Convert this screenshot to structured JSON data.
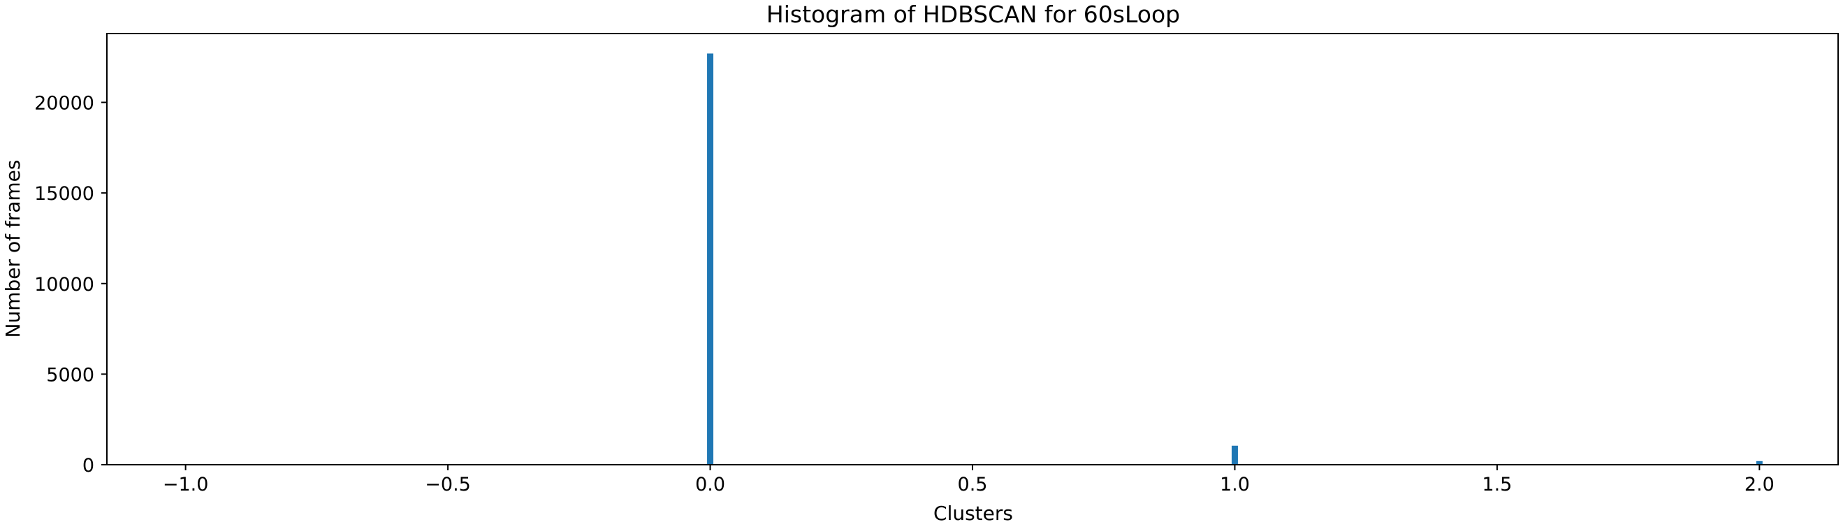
{
  "chart_data": {
    "type": "bar",
    "title": "Histogram of HDBSCAN for 60sLoop",
    "xlabel": "Clusters",
    "ylabel": "Number of frames",
    "x": [
      -1.0,
      0.0,
      1.0,
      2.0
    ],
    "values": [
      0,
      22700,
      1050,
      200
    ],
    "xlim": [
      -1.15,
      2.15
    ],
    "ylim": [
      0,
      23800
    ],
    "xticks": [
      -1.0,
      -0.5,
      0.0,
      0.5,
      1.0,
      1.5,
      2.0
    ],
    "xtick_labels": [
      "−1.0",
      "−0.5",
      "0.0",
      "0.5",
      "1.0",
      "1.5",
      "2.0"
    ],
    "yticks": [
      0,
      5000,
      10000,
      15000,
      20000
    ],
    "ytick_labels": [
      "0",
      "5000",
      "10000",
      "15000",
      "20000"
    ],
    "bar_color": "#1f77b4",
    "grid": false,
    "legend": false
  }
}
